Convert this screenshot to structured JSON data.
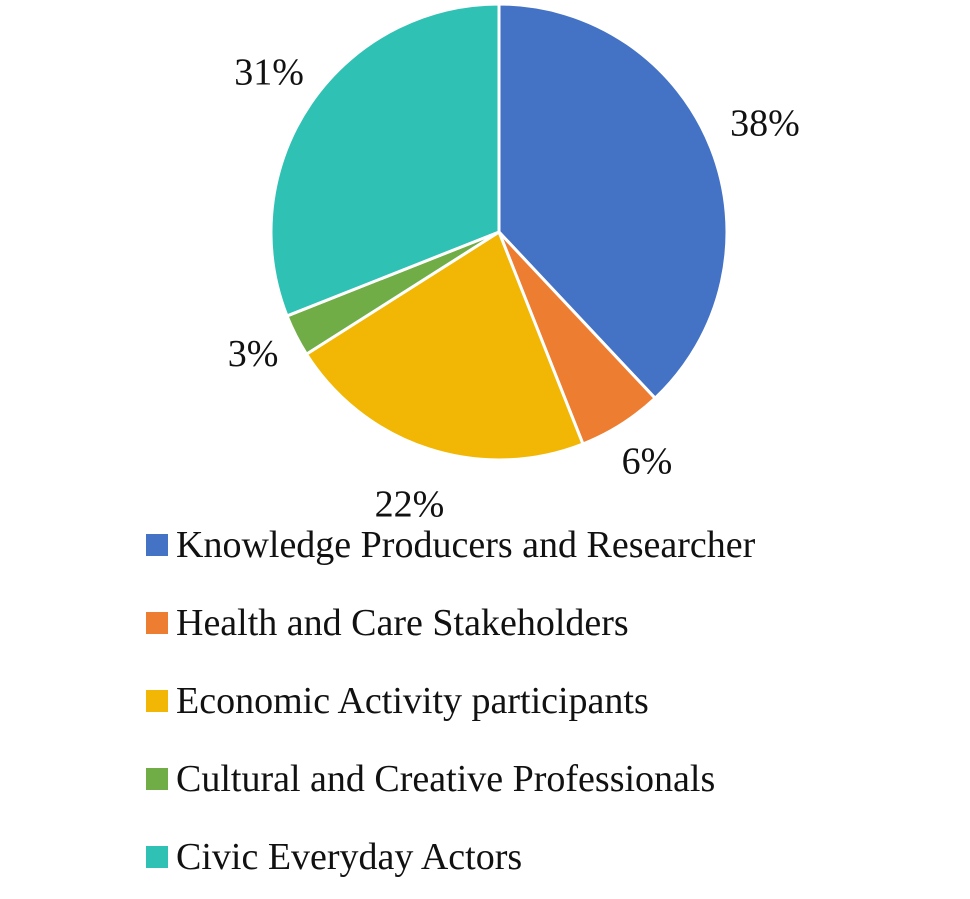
{
  "chart_data": {
    "type": "pie",
    "title": "",
    "slices": [
      {
        "label": "Knowledge Producers and Researcher",
        "value": 38,
        "value_label": "38%",
        "color": "#4472C4"
      },
      {
        "label": "Health and Care Stakeholders",
        "value": 6,
        "value_label": "6%",
        "color": "#ED7D31"
      },
      {
        "label": "Economic Activity participants",
        "value": 22,
        "value_label": "22%",
        "color": "#F2B705"
      },
      {
        "label": "Cultural and Creative Professionals",
        "value": 3,
        "value_label": "3%",
        "color": "#70AD47"
      },
      {
        "label": "Civic Everyday Actors",
        "value": 31,
        "value_label": "31%",
        "color": "#2EC1B4"
      }
    ],
    "start_angle": "12 o'clock",
    "direction": "clockwise",
    "legend_position": "bottom"
  }
}
